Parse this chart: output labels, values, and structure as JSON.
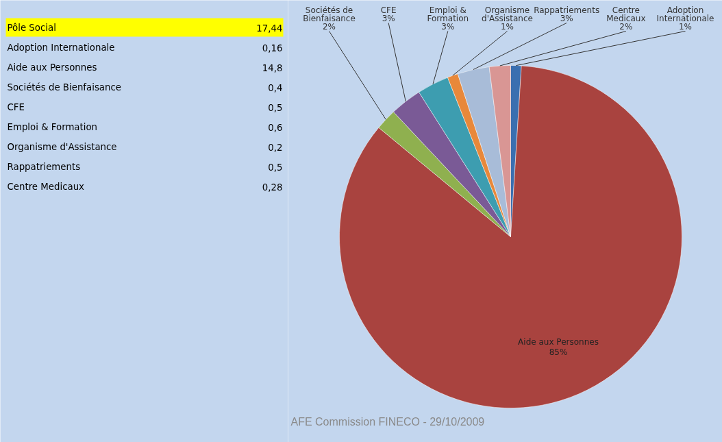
{
  "chart_data": [
    {
      "type": "other",
      "annotations": [
        "Pôle Social",
        "17,44",
        "Adoption Internationale",
        "0,16",
        "Aide aux Personnes",
        "14,8",
        "Sociétés de Bienfaisance",
        "0,4",
        "CFE",
        "0,5",
        "Emploi & Formation",
        "0,6",
        "Organisme d'Assistance",
        "0,2",
        "Rappatriements",
        "0,5",
        "Centre Medicaux",
        "0,28"
      ]
    },
    {
      "type": "pie",
      "categories": [
        "Adoption Internationale",
        "Aide aux Personnes",
        "Sociétés de Bienfaisance",
        "CFE",
        "Emploi & Formation",
        "Organisme d'Assistance",
        "Rappatriements",
        "Centre Medicaux"
      ],
      "values": [
        1,
        85,
        2,
        3,
        3,
        1,
        3,
        2
      ],
      "value_labels": [
        "1%",
        "85%",
        "2%",
        "3%",
        "3%",
        "1%",
        "3%",
        "2%"
      ],
      "colors": [
        "#3a6fb0",
        "#a9433f",
        "#8fb04f",
        "#7a5a96",
        "#3d9db0",
        "#e8883a",
        "#a8bcd8",
        "#d99694"
      ],
      "annotations": [
        "AFE Commission FINECO - 29/10/2009"
      ]
    }
  ]
}
